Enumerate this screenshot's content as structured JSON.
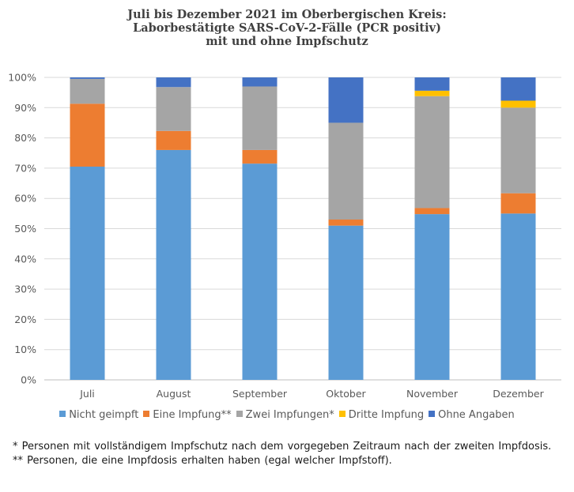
{
  "chart_data": {
    "type": "bar",
    "stacked": true,
    "title_lines": [
      "Juli bis Dezember 2021 im Oberbergischen Kreis:",
      "Laborbestätigte SARS-CoV-2-Fälle (PCR positiv)",
      "mit und ohne Impfschutz"
    ],
    "categories": [
      "Juli",
      "August",
      "September",
      "Oktober",
      "November",
      "Dezember"
    ],
    "ylim": [
      0,
      100
    ],
    "ytick_labels": [
      "0%",
      "10%",
      "20%",
      "30%",
      "40%",
      "50%",
      "60%",
      "70%",
      "80%",
      "90%",
      "100%"
    ],
    "grid": true,
    "legend_position": "bottom",
    "series": [
      {
        "name": "Nicht geimpft",
        "color": "#5b9bd5",
        "values": [
          70.5,
          76.0,
          71.5,
          51.0,
          54.8,
          55.0
        ]
      },
      {
        "name": "Eine Impfung**",
        "color": "#ed7d31",
        "values": [
          20.8,
          6.3,
          4.5,
          2.0,
          2.0,
          6.7
        ]
      },
      {
        "name": "Zwei Impfungen*",
        "color": "#a5a5a5",
        "values": [
          8.2,
          14.5,
          21.0,
          32.0,
          37.0,
          28.3
        ]
      },
      {
        "name": "Dritte Impfung",
        "color": "#ffc000",
        "values": [
          0.0,
          0.0,
          0.0,
          0.0,
          1.8,
          2.3
        ]
      },
      {
        "name": "Ohne Angaben",
        "color": "#4472c4",
        "values": [
          0.5,
          3.2,
          3.0,
          15.0,
          4.4,
          7.7
        ]
      }
    ]
  },
  "footnotes": [
    "* Personen mit vollständigem Impfschutz nach dem vorgegeben Zeitraum nach der zweiten Impfdosis.",
    "** Personen, die eine Impfdosis erhalten haben (egal welcher Impfstoff)."
  ]
}
